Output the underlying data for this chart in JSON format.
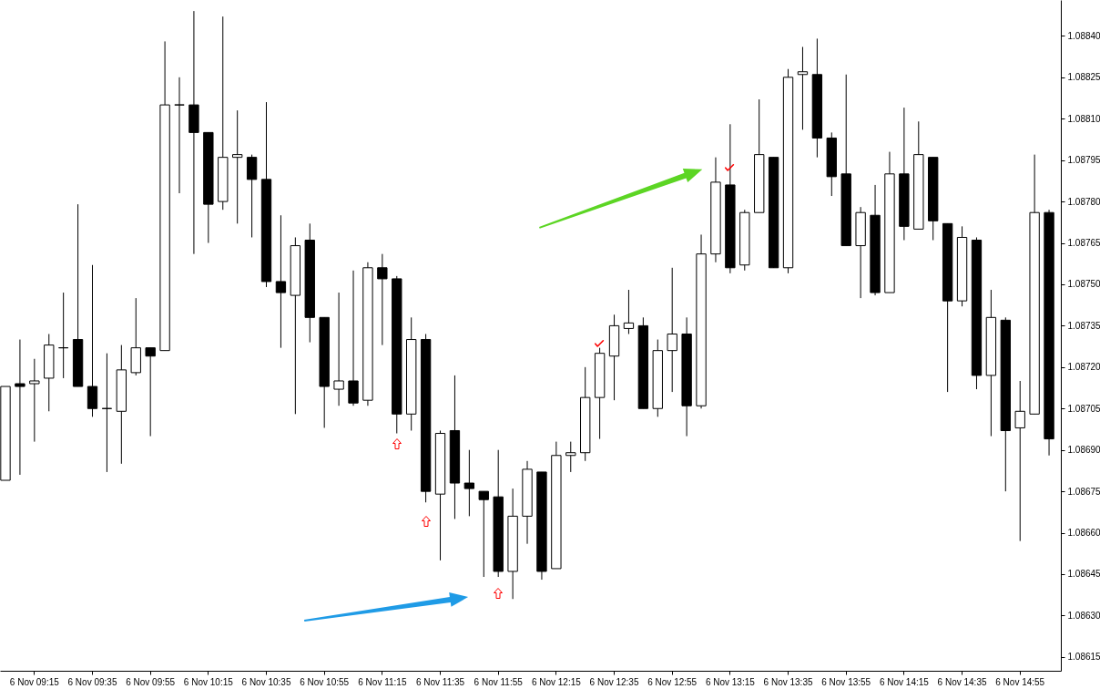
{
  "chart_data": {
    "type": "candlestick",
    "color": "#000000",
    "categories": [
      null,
      null,
      "6 Nov 09:15",
      null,
      null,
      null,
      "6 Nov 09:35",
      null,
      null,
      null,
      "6 Nov 09:55",
      null,
      null,
      null,
      "6 Nov 10:15",
      null,
      null,
      null,
      "6 Nov 10:35",
      null,
      null,
      null,
      "6 Nov 10:55",
      null,
      null,
      null,
      "6 Nov 11:15",
      null,
      null,
      null,
      "6 Nov 11:35",
      null,
      null,
      null,
      "6 Nov 11:55",
      null,
      null,
      null,
      "6 Nov 12:15",
      null,
      null,
      null,
      "6 Nov 12:35",
      null,
      null,
      null,
      "6 Nov 12:55",
      null,
      null,
      null,
      "6 Nov 13:15",
      null,
      null,
      null,
      "6 Nov 13:35",
      null,
      null,
      null,
      "6 Nov 13:55",
      null,
      null,
      null,
      "6 Nov 14:15",
      null,
      null,
      null,
      "6 Nov 14:35",
      null,
      null,
      null,
      "6 Nov 14:55",
      null,
      null
    ],
    "ohlc": [
      [
        1.08679,
        1.08713,
        1.08679,
        1.08713
      ],
      [
        1.08714,
        1.0873,
        1.08681,
        1.08713
      ],
      [
        1.08714,
        1.08723,
        1.08693,
        1.08715
      ],
      [
        1.08716,
        1.08732,
        1.08704,
        1.08728
      ],
      [
        1.08727,
        1.08747,
        1.08716,
        1.08727
      ],
      [
        1.0873,
        1.08779,
        1.08713,
        1.08713
      ],
      [
        1.08713,
        1.08757,
        1.08702,
        1.08705
      ],
      [
        1.08705,
        1.08725,
        1.08682,
        1.08705
      ],
      [
        1.08704,
        1.08728,
        1.08685,
        1.08719
      ],
      [
        1.08718,
        1.08745,
        1.08717,
        1.08727
      ],
      [
        1.08727,
        1.08727,
        1.08695,
        1.08724
      ],
      [
        1.08726,
        1.08838,
        1.08726,
        1.08815
      ],
      [
        1.08815,
        1.08825,
        1.08783,
        1.08815
      ],
      [
        1.08815,
        1.08849,
        1.08761,
        1.08805
      ],
      [
        1.08805,
        1.08805,
        1.08765,
        1.08779
      ],
      [
        1.0878,
        1.08847,
        1.08777,
        1.08796
      ],
      [
        1.08796,
        1.08813,
        1.08772,
        1.08797
      ],
      [
        1.08796,
        1.08797,
        1.08767,
        1.08788
      ],
      [
        1.08788,
        1.08816,
        1.08749,
        1.08751
      ],
      [
        1.08751,
        1.08775,
        1.08727,
        1.08747
      ],
      [
        1.08746,
        1.08767,
        1.08703,
        1.08764
      ],
      [
        1.08766,
        1.08772,
        1.08729,
        1.08738
      ],
      [
        1.08738,
        1.08738,
        1.08698,
        1.08713
      ],
      [
        1.08712,
        1.08747,
        1.08706,
        1.08715
      ],
      [
        1.08715,
        1.08755,
        1.08706,
        1.08707
      ],
      [
        1.08708,
        1.08758,
        1.08706,
        1.08756
      ],
      [
        1.08756,
        1.08761,
        1.08728,
        1.08752
      ],
      [
        1.08752,
        1.08753,
        1.08696,
        1.08703
      ],
      [
        1.08703,
        1.08738,
        1.08697,
        1.0873
      ],
      [
        1.0873,
        1.08732,
        1.08671,
        1.08675
      ],
      [
        1.08674,
        1.08697,
        1.0865,
        1.08696
      ],
      [
        1.08697,
        1.08717,
        1.08665,
        1.08678
      ],
      [
        1.08678,
        1.0869,
        1.08666,
        1.08676
      ],
      [
        1.08675,
        1.08675,
        1.08644,
        1.08672
      ],
      [
        1.08673,
        1.0869,
        1.08644,
        1.08646
      ],
      [
        1.08646,
        1.08676,
        1.08636,
        1.08666
      ],
      [
        1.08666,
        1.08686,
        1.08656,
        1.08683
      ],
      [
        1.08682,
        1.08682,
        1.08643,
        1.08646
      ],
      [
        1.08647,
        1.08693,
        1.08647,
        1.08688
      ],
      [
        1.08688,
        1.08693,
        1.08682,
        1.08689
      ],
      [
        1.08689,
        1.0872,
        1.08686,
        1.08709
      ],
      [
        1.08709,
        1.08727,
        1.08694,
        1.08725
      ],
      [
        1.08724,
        1.08739,
        1.08708,
        1.08735
      ],
      [
        1.08734,
        1.08748,
        1.08732,
        1.08736
      ],
      [
        1.08735,
        1.08738,
        1.08705,
        1.08705
      ],
      [
        1.08705,
        1.0873,
        1.08702,
        1.08726
      ],
      [
        1.08726,
        1.08756,
        1.08711,
        1.08732
      ],
      [
        1.08732,
        1.08738,
        1.08695,
        1.08706
      ],
      [
        1.08706,
        1.08768,
        1.08705,
        1.08761
      ],
      [
        1.08761,
        1.08796,
        1.08758,
        1.08787
      ],
      [
        1.08786,
        1.08808,
        1.08754,
        1.08756
      ],
      [
        1.08757,
        1.08777,
        1.08755,
        1.08776
      ],
      [
        1.08776,
        1.08817,
        1.08776,
        1.08797
      ],
      [
        1.08796,
        1.08796,
        1.08756,
        1.08756
      ],
      [
        1.08756,
        1.08828,
        1.08754,
        1.08825
      ],
      [
        1.08826,
        1.08836,
        1.08806,
        1.08827
      ],
      [
        1.08826,
        1.08839,
        1.08796,
        1.08803
      ],
      [
        1.08803,
        1.08805,
        1.08782,
        1.08789
      ],
      [
        1.0879,
        1.08826,
        1.08764,
        1.08764
      ],
      [
        1.08764,
        1.08778,
        1.08745,
        1.08776
      ],
      [
        1.08775,
        1.08786,
        1.08746,
        1.08747
      ],
      [
        1.08747,
        1.08798,
        1.08747,
        1.0879
      ],
      [
        1.0879,
        1.08814,
        1.08766,
        1.08771
      ],
      [
        1.0877,
        1.08809,
        1.0877,
        1.08797
      ],
      [
        1.08796,
        1.08796,
        1.08766,
        1.08773
      ],
      [
        1.08772,
        1.08772,
        1.08711,
        1.08744
      ],
      [
        1.08744,
        1.08771,
        1.08742,
        1.08767
      ],
      [
        1.08766,
        1.08767,
        1.08712,
        1.08717
      ],
      [
        1.08717,
        1.08748,
        1.08695,
        1.08738
      ],
      [
        1.08737,
        1.08738,
        1.08675,
        1.08697
      ],
      [
        1.08698,
        1.08715,
        1.08657,
        1.08704
      ],
      [
        1.08703,
        1.08797,
        1.08703,
        1.08776
      ],
      [
        1.08776,
        1.08777,
        1.08688,
        1.08694
      ]
    ],
    "ylim": [
      1.0861,
      1.08853
    ],
    "yticks": [
      1.08615,
      {
        "value": 1.0863,
        "label": "1.08630"
      },
      1.08645,
      {
        "value": 1.0866,
        "label": "1.08660"
      },
      1.08675,
      {
        "value": 1.0869,
        "label": "1.08690"
      },
      1.08705,
      {
        "value": 1.0872,
        "label": "1.08720"
      },
      1.08735,
      {
        "value": 1.0875,
        "label": "1.08750"
      },
      1.08765,
      {
        "value": 1.0878,
        "label": "1.08780"
      },
      1.08795,
      {
        "value": 1.0881,
        "label": "1.08810"
      },
      1.08825,
      {
        "value": 1.0884,
        "label": "1.08840"
      }
    ]
  }
}
